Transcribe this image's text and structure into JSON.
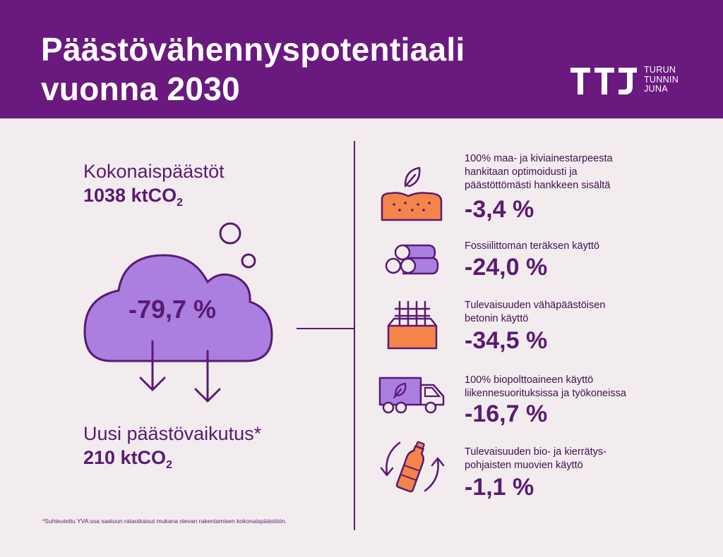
{
  "header": {
    "title_line1": "Päästövähennyspotentiaali",
    "title_line2": "vuonna 2030",
    "logo_mark": "TTJ",
    "logo_text": [
      "TURUN",
      "TUNNIN",
      "JUNA"
    ]
  },
  "summary": {
    "total_label": "Kokonaispäästöt",
    "total_value": "1038 ktCO",
    "total_sub": "2",
    "reduction": "-79,7 %",
    "new_label": "Uusi päästövaikutus*",
    "new_value": "210 ktCO",
    "new_sub": "2"
  },
  "footnote": "*Suhteutettu YVA:ssa saatuun rataoikaisut mukana olevan rakentamisen kokonaispäästöön.",
  "items": [
    {
      "icon": "soil-leaf-icon",
      "lines": [
        "100% maa- ja kiviainestarpeesta",
        "hankitaan optimoidusti ja",
        "päästöttömästi hankkeen sisältä"
      ],
      "value": "-3,4 %"
    },
    {
      "icon": "steel-pipes-icon",
      "lines": [
        "Fossiilittoman teräksen käyttö"
      ],
      "value": "-24,0 %"
    },
    {
      "icon": "concrete-rebar-icon",
      "lines": [
        "Tulevaisuuden vähäpäästöisen",
        "betonin käyttö"
      ],
      "value": "-34,5 %"
    },
    {
      "icon": "biofuel-truck-icon",
      "lines": [
        "100% biopolttoaineen käyttö",
        "liikennesuorituksissa ja työkoneissa"
      ],
      "value": "-16,7 %"
    },
    {
      "icon": "recycled-bottle-icon",
      "lines": [
        "Tulevaisuuden bio- ja kierrätys-",
        "pohjaisten muovien käyttö"
      ],
      "value": "-1,1 %"
    }
  ],
  "colors": {
    "header": "#6a1a7e",
    "background": "#f3ecee",
    "text": "#5a1a73",
    "cloud": "#ab7fe0",
    "orange": "#f4844a"
  }
}
